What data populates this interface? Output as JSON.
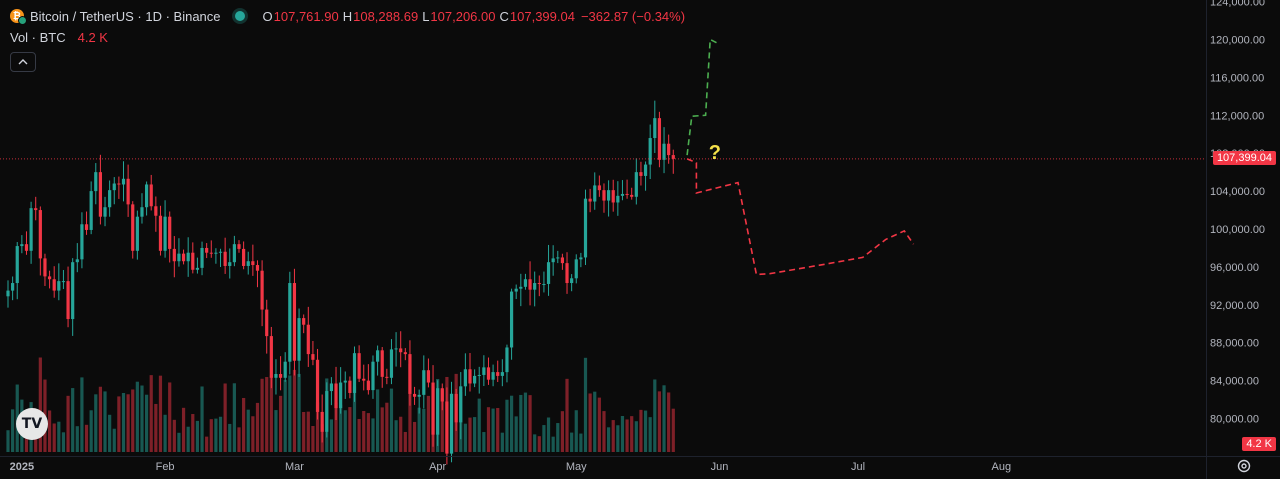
{
  "legend": {
    "title": "Bitcoin / TetherUS · 1D · Binance",
    "ohlc": [
      {
        "key": "O",
        "value": "107,761.90"
      },
      {
        "key": "H",
        "value": "108,288.69"
      },
      {
        "key": "L",
        "value": "107,206.00"
      },
      {
        "key": "C",
        "value": "107,399.04"
      }
    ],
    "change": "−362.87 (−0.34%)",
    "volume_label": "Vol · BTC",
    "volume_value": "4.2 K"
  },
  "price_axis_badge": "107,399.04",
  "volume_axis_badge": "4.2 K",
  "logo_text": "TV",
  "colors": {
    "up": "#26a69a",
    "down": "#f23645",
    "projection_up": "#4caf50",
    "projection_down": "#f23645",
    "question_mark": "#f5e14a"
  },
  "chart_data": {
    "type": "candlestick",
    "y_ticks": [
      "124,000.00",
      "120,000.00",
      "116,000.00",
      "112,000.00",
      "108,000.00",
      "104,000.00",
      "100,000.00",
      "96,000.00",
      "92,000.00",
      "88,000.00",
      "84,000.00",
      "80,000.00"
    ],
    "x_ticks": [
      "2025",
      "Feb",
      "Mar",
      "Apr",
      "May",
      "Jun",
      "Jul",
      "Aug"
    ],
    "ylim": [
      76000,
      125500
    ],
    "current_price": 107399.04,
    "grid": false,
    "start_date": "2024-12-29",
    "close": [
      93500,
      94300,
      98200,
      98400,
      97700,
      102200,
      102000,
      96900,
      95000,
      94700,
      93500,
      94500,
      94500,
      90500,
      96500,
      96800,
      100500,
      99900,
      104000,
      106000,
      101300,
      102300,
      104100,
      104800,
      104700,
      105300,
      102600,
      97700,
      101300,
      102300,
      104700,
      102400,
      101400,
      97700,
      101300,
      97900,
      96600,
      97400,
      96600,
      97500,
      95700,
      95900,
      98000,
      97500,
      97400,
      97500,
      97600,
      96100,
      96500,
      98400,
      97900,
      96100,
      96600,
      96200,
      95600,
      91500,
      88700,
      84300,
      84700,
      84300,
      86000,
      94300,
      86100,
      90600,
      89900,
      86800,
      86200,
      80700,
      78600,
      82900,
      83700,
      81100,
      83800,
      84000,
      82700,
      86900,
      84200,
      84000,
      83000,
      86000,
      87200,
      84400,
      84300,
      87300,
      87400,
      87000,
      86800,
      82600,
      82300,
      82500,
      85100,
      83800,
      78300,
      83200,
      81800,
      76300,
      82600,
      79600,
      83400,
      85200,
      83700,
      84500,
      84600,
      85400,
      84100,
      84900,
      84500,
      84900,
      87500,
      93400,
      93700,
      93900,
      94700,
      93600,
      94300,
      94200,
      94200,
      96500,
      96900,
      97000,
      96400,
      94300,
      94800,
      96800,
      97000,
      103200,
      102900,
      104600,
      104100,
      103000,
      104100,
      102800,
      103500,
      103700,
      103600,
      103400,
      106000,
      105600,
      106800,
      109600,
      111700,
      107300,
      109000,
      107800,
      107400
    ],
    "projection_up": {
      "dates": [
        "2025-05-25",
        "2025-05-26",
        "2025-05-29",
        "2025-05-30",
        "2025-06-01"
      ],
      "values": [
        107800,
        111900,
        112000,
        120000,
        119500
      ]
    },
    "projection_down": {
      "dates": [
        "2025-05-25",
        "2025-05-27",
        "2025-05-27",
        "2025-06-05",
        "2025-06-09",
        "2025-06-12",
        "2025-06-24",
        "2025-07-02",
        "2025-07-07",
        "2025-07-11",
        "2025-07-13"
      ],
      "values": [
        107400,
        107000,
        103800,
        104900,
        95200,
        95300,
        96300,
        97000,
        98900,
        99800,
        98400
      ]
    },
    "question_mark": "?"
  }
}
